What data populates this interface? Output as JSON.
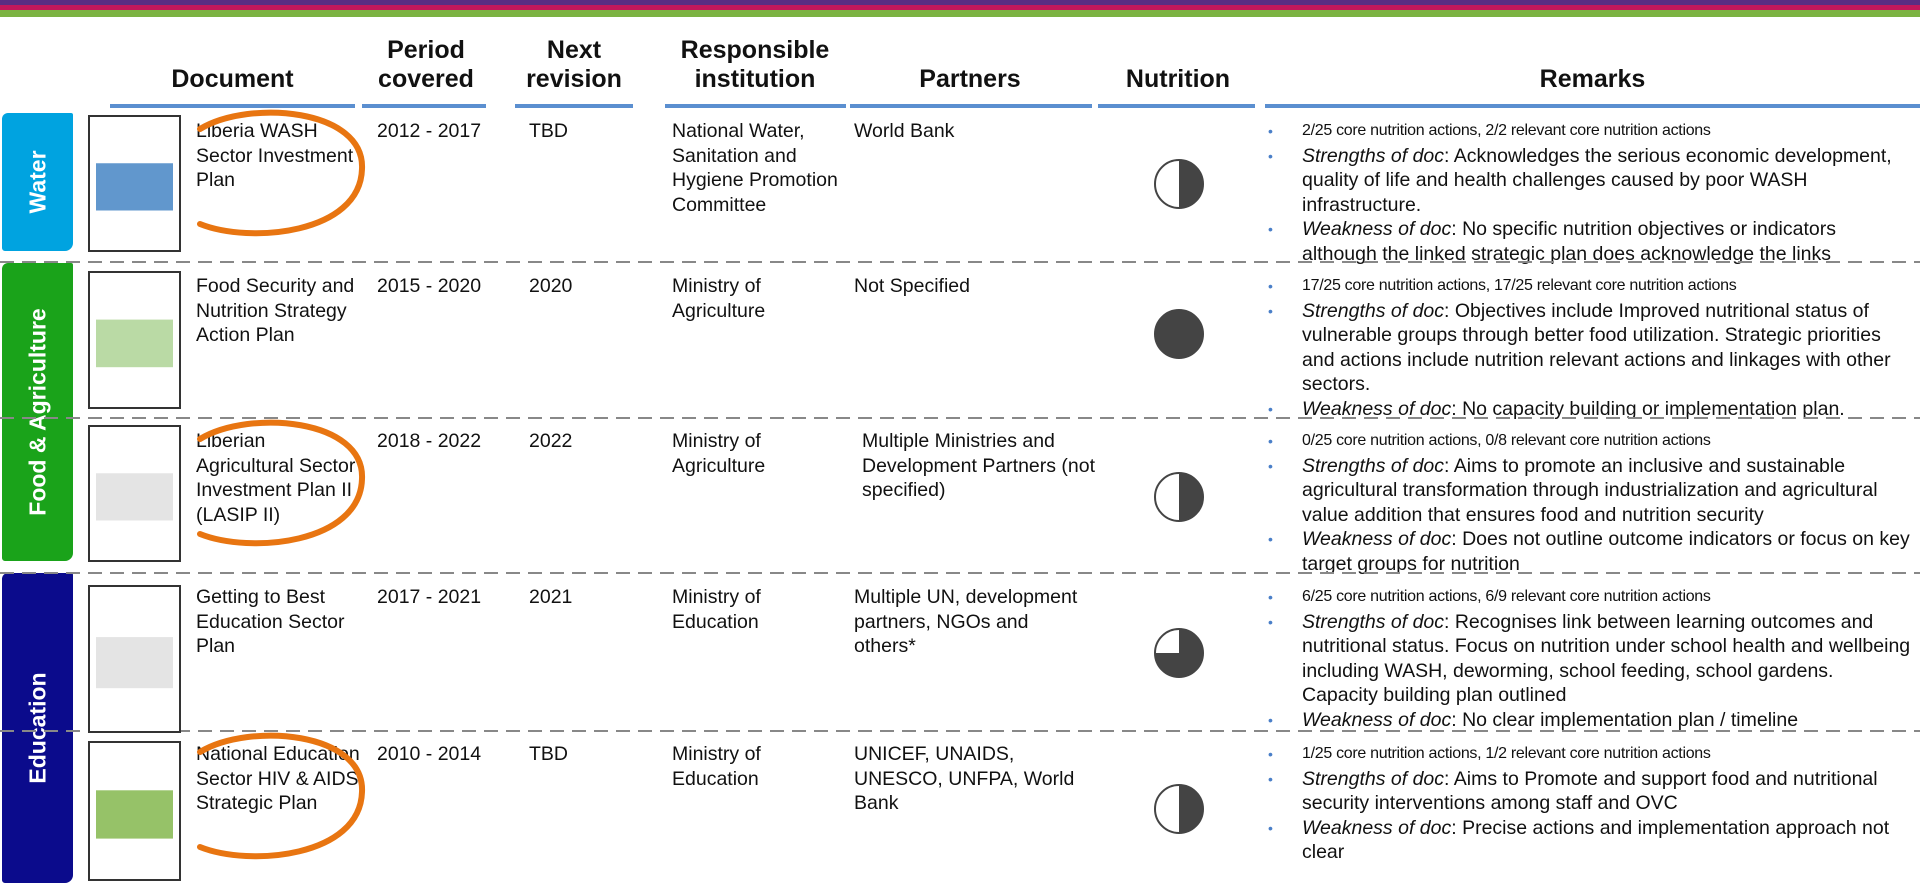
{
  "columns": [
    "Document",
    "Period covered",
    "Next revision",
    "Responsible institution",
    "Partners",
    "Nutrition",
    "Remarks"
  ],
  "sectors": [
    {
      "label": "Water",
      "color": "#00a3e0"
    },
    {
      "label": "Food & Agriculture",
      "color": "#1aa31a"
    },
    {
      "label": "Education",
      "color": "#0b0b8c"
    }
  ],
  "rows": [
    {
      "document": "Liberia WASH Sector Investment Plan",
      "period": "2012 - 2017",
      "next_revision": "TBD",
      "institution": "National Water, Sanitation and Hygiene Promotion Committee",
      "partners": "World Bank",
      "nutrition": 0.5,
      "remarks": [
        {
          "text": "2/25 core nutrition actions, 2/2 relevant core nutrition actions"
        },
        {
          "label": "Strengths of doc",
          "text": ": Acknowledges the serious economic development, quality of life and health challenges caused by poor WASH infrastructure."
        },
        {
          "label": "Weakness of doc",
          "text": ": No specific nutrition objectives or indicators although the linked strategic plan does acknowledge the links"
        }
      ]
    },
    {
      "document": "Food Security and Nutrition Strategy Action Plan",
      "period": "2015 - 2020",
      "next_revision": "2020",
      "institution": "Ministry of Agriculture",
      "partners": "Not Specified",
      "nutrition": 1,
      "remarks": [
        {
          "text": "17/25 core nutrition actions, 17/25 relevant core nutrition actions"
        },
        {
          "label": "Strengths of doc",
          "text": ": Objectives include Improved nutritional status of vulnerable groups through better food utilization. Strategic priorities and actions include nutrition relevant actions and linkages with other sectors."
        },
        {
          "label": "Weakness of doc",
          "text": ": No capacity building or implementation plan."
        }
      ]
    },
    {
      "document": "Liberian Agricultural Sector Investment Plan II (LASIP II)",
      "period": "2018 - 2022",
      "next_revision": "2022",
      "institution": "Ministry of Agriculture",
      "partners": "Multiple Ministries and Development Partners (not specified)",
      "nutrition": 0.5,
      "remarks": [
        {
          "text": "0/25 core nutrition actions, 0/8 relevant core nutrition actions"
        },
        {
          "label": "Strengths of doc",
          "text": ": Aims to promote an inclusive and sustainable agricultural transformation through industrialization and agricultural value addition that ensures food and nutrition security"
        },
        {
          "label": "Weakness of doc",
          "text": ": Does not outline outcome indicators or focus on key target groups for nutrition"
        }
      ]
    },
    {
      "document": "Getting to Best Education Sector Plan",
      "period": "2017 - 2021",
      "next_revision": "2021",
      "institution": "Ministry of Education",
      "partners": "Multiple UN, development partners, NGOs and others*",
      "nutrition": 0.75,
      "remarks": [
        {
          "text": "6/25 core nutrition actions, 6/9 relevant core nutrition actions"
        },
        {
          "label": "Strengths of doc",
          "text": ": Recognises link between learning outcomes and nutritional status. Focus on nutrition under school health and wellbeing including WASH, deworming, school feeding, school gardens. Capacity building plan outlined"
        },
        {
          "label": "Weakness of doc",
          "text": ": No clear implementation plan / timeline"
        }
      ]
    },
    {
      "document": "National Education Sector HIV & AIDS Strategic Plan",
      "period": "2010 - 2014",
      "next_revision": "TBD",
      "institution": "Ministry of Education",
      "partners": "UNICEF, UNAIDS, UNESCO, UNFPA, World Bank",
      "nutrition": 0.5,
      "remarks": [
        {
          "text": "1/25 core nutrition actions, 1/2 relevant core nutrition actions"
        },
        {
          "label": "Strengths of doc",
          "text": ": Aims to Promote and support food and nutritional security interventions among staff and OVC"
        },
        {
          "label": "Weakness of doc",
          "text": ": Precise actions and implementation approach not clear"
        }
      ]
    }
  ]
}
